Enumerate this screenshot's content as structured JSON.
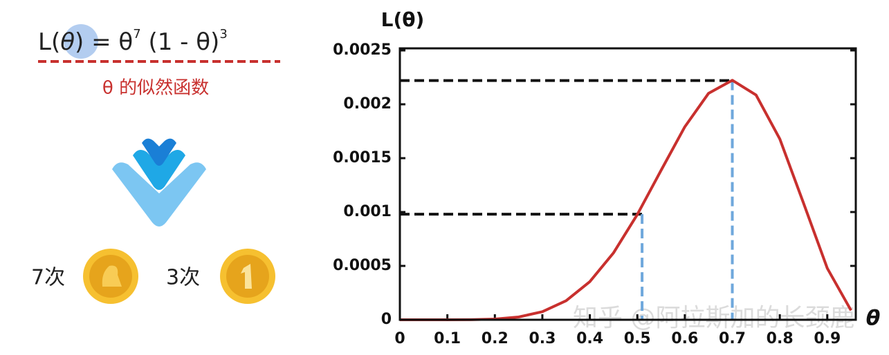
{
  "formula": [
    "L(",
    "θ",
    ") = θ",
    "7",
    " (1 - θ)",
    "3"
  ],
  "caption": "θ 的似然函数",
  "coins": [
    "7次",
    "3次"
  ],
  "chart_data": {
    "type": "line",
    "ylabel": "L(θ)",
    "xlabel": "θ",
    "watermark": "知乎 @阿拉斯加的长颈鹿",
    "x": [
      0,
      0.05,
      0.1,
      0.15,
      0.2,
      0.25,
      0.3,
      0.35,
      0.4,
      0.45,
      0.5,
      0.55,
      0.6,
      0.65,
      0.7,
      0.75,
      0.8,
      0.85,
      0.9,
      0.95
    ],
    "series": [
      {
        "name": "L(θ)",
        "color": "#c8302e",
        "values": [
          0,
          0,
          1e-07,
          1e-06,
          6.6e-06,
          2.57e-05,
          7.5e-05,
          0.000177,
          0.000354,
          0.000622,
          0.000977,
          0.001387,
          0.001791,
          0.002102,
          0.002223,
          0.002086,
          0.001678,
          0.001082,
          0.000478,
          8.7e-05
        ]
      }
    ],
    "guides": [
      {
        "x": 0.51,
        "y": 0.00098
      },
      {
        "x": 0.7,
        "y": 0.00222
      }
    ],
    "xlim": [
      0,
      0.96
    ],
    "ylim": [
      0,
      0.0025
    ],
    "xticks": [
      0,
      0.1,
      0.2,
      0.3,
      0.4,
      0.5,
      0.6,
      0.7,
      0.8,
      0.9
    ],
    "yticks": [
      0,
      0.0005,
      0.001,
      0.0015,
      0.002,
      0.0025
    ],
    "grid": false
  }
}
